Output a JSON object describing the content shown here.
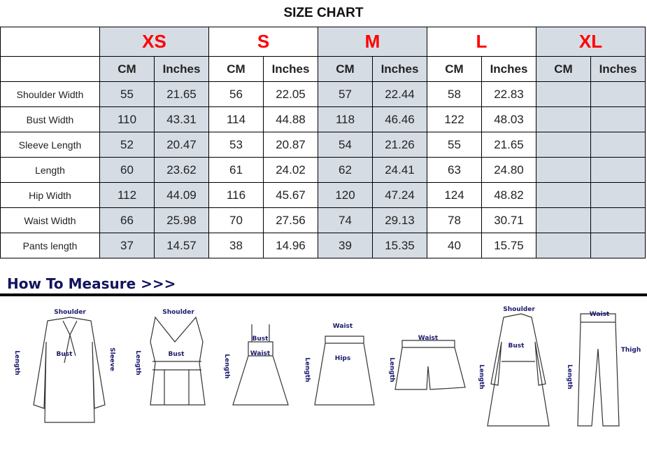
{
  "title": "SIZE CHART",
  "sizes": [
    "XS",
    "S",
    "M",
    "L",
    "XL"
  ],
  "units": [
    "CM",
    "Inches"
  ],
  "size_color": "#ff0000",
  "shade_color": "#d6dce4",
  "rows": [
    {
      "label": "Shoulder Width",
      "values": [
        "55",
        "21.65",
        "56",
        "22.05",
        "57",
        "22.44",
        "58",
        "22.83",
        "",
        ""
      ]
    },
    {
      "label": "Bust Width",
      "values": [
        "110",
        "43.31",
        "114",
        "44.88",
        "118",
        "46.46",
        "122",
        "48.03",
        "",
        ""
      ]
    },
    {
      "label": "Sleeve Length",
      "values": [
        "52",
        "20.47",
        "53",
        "20.87",
        "54",
        "21.26",
        "55",
        "21.65",
        "",
        ""
      ]
    },
    {
      "label": "Length",
      "values": [
        "60",
        "23.62",
        "61",
        "24.02",
        "62",
        "24.41",
        "63",
        "24.80",
        "",
        ""
      ]
    },
    {
      "label": "Hip Width",
      "values": [
        "112",
        "44.09",
        "116",
        "45.67",
        "120",
        "47.24",
        "124",
        "48.82",
        "",
        ""
      ]
    },
    {
      "label": "Waist Width",
      "values": [
        "66",
        "25.98",
        "70",
        "27.56",
        "74",
        "29.13",
        "78",
        "30.71",
        "",
        ""
      ]
    },
    {
      "label": "Pants length",
      "values": [
        "37",
        "14.57",
        "38",
        "14.96",
        "39",
        "15.35",
        "40",
        "15.75",
        "",
        ""
      ]
    }
  ],
  "how_to_measure": "How To Measure >>>",
  "illustrations": [
    {
      "garment": "blouse",
      "labels": [
        "Shoulder",
        "Bust",
        "Length",
        "Sleeve"
      ]
    },
    {
      "garment": "tank-top",
      "labels": [
        "Shoulder",
        "Bust",
        "Length"
      ]
    },
    {
      "garment": "dress",
      "labels": [
        "Bust",
        "Waist",
        "Length"
      ]
    },
    {
      "garment": "skirt",
      "labels": [
        "Waist",
        "Hips",
        "Length"
      ]
    },
    {
      "garment": "shorts",
      "labels": [
        "Waist",
        "Length"
      ]
    },
    {
      "garment": "coat",
      "labels": [
        "Shoulder",
        "Bust",
        "Length"
      ]
    },
    {
      "garment": "pants",
      "labels": [
        "Waist",
        "Thigh",
        "Length"
      ]
    }
  ]
}
